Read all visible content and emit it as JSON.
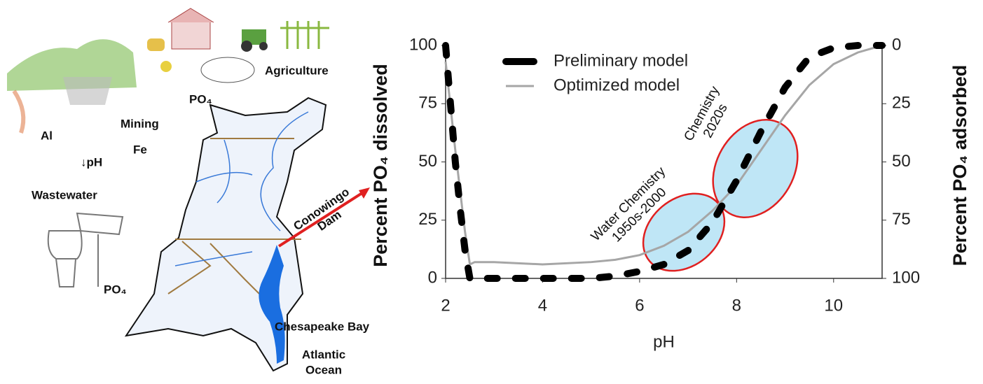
{
  "illustration": {
    "labels": [
      "Agriculture",
      "PO₄",
      "Mining",
      "Al",
      "Fe",
      "↓pH",
      "Wastewater",
      "PO₄",
      "Chesapeake Bay"
    ],
    "dam_label": [
      "Conowingo",
      "Dam"
    ],
    "ocean_label": [
      "Atlantic",
      "Ocean"
    ]
  },
  "chart_data": {
    "type": "line",
    "x_label": "pH",
    "y_label": "Percent PO₄ dissolved",
    "y2_label": "Percent PO₄ adsorbed",
    "xlim": [
      2,
      11
    ],
    "xticks": [
      2,
      4,
      6,
      8,
      10
    ],
    "ylim": [
      0,
      100
    ],
    "yticks": [
      0,
      25,
      50,
      75,
      100
    ],
    "y2lim": [
      100,
      0
    ],
    "y2ticks": [
      0,
      25,
      50,
      75,
      100
    ],
    "legend": "top-left",
    "series": [
      {
        "name": "Preliminary model",
        "color": "#000000",
        "style": "dashed",
        "x": [
          2.0,
          2.1,
          2.2,
          2.3,
          2.4,
          2.5,
          3.0,
          3.5,
          4.0,
          4.5,
          5.0,
          5.5,
          6.0,
          6.5,
          7.0,
          7.5,
          8.0,
          8.5,
          9.0,
          9.5,
          10.0,
          10.5,
          11.0
        ],
        "values": [
          100,
          75,
          50,
          30,
          12,
          0,
          0,
          0,
          0,
          0,
          0,
          1,
          3,
          6,
          12,
          24,
          42,
          63,
          82,
          95,
          99,
          100,
          100
        ]
      },
      {
        "name": "Optimized model",
        "color": "#a6a6a6",
        "style": "solid",
        "x": [
          2.0,
          2.2,
          2.4,
          2.5,
          2.6,
          3.0,
          4.0,
          5.0,
          5.5,
          6.0,
          6.5,
          7.0,
          7.5,
          8.0,
          8.5,
          9.0,
          9.5,
          10.0,
          10.5,
          11.0
        ],
        "values": [
          93,
          55,
          20,
          6,
          7,
          7,
          6,
          7,
          8,
          10,
          14,
          20,
          29,
          40,
          55,
          70,
          83,
          92,
          97,
          100
        ]
      }
    ],
    "annotations": [
      [
        "Water Chemistry",
        "1950s-2000"
      ],
      [
        "Chemistry",
        "2020s"
      ]
    ]
  }
}
